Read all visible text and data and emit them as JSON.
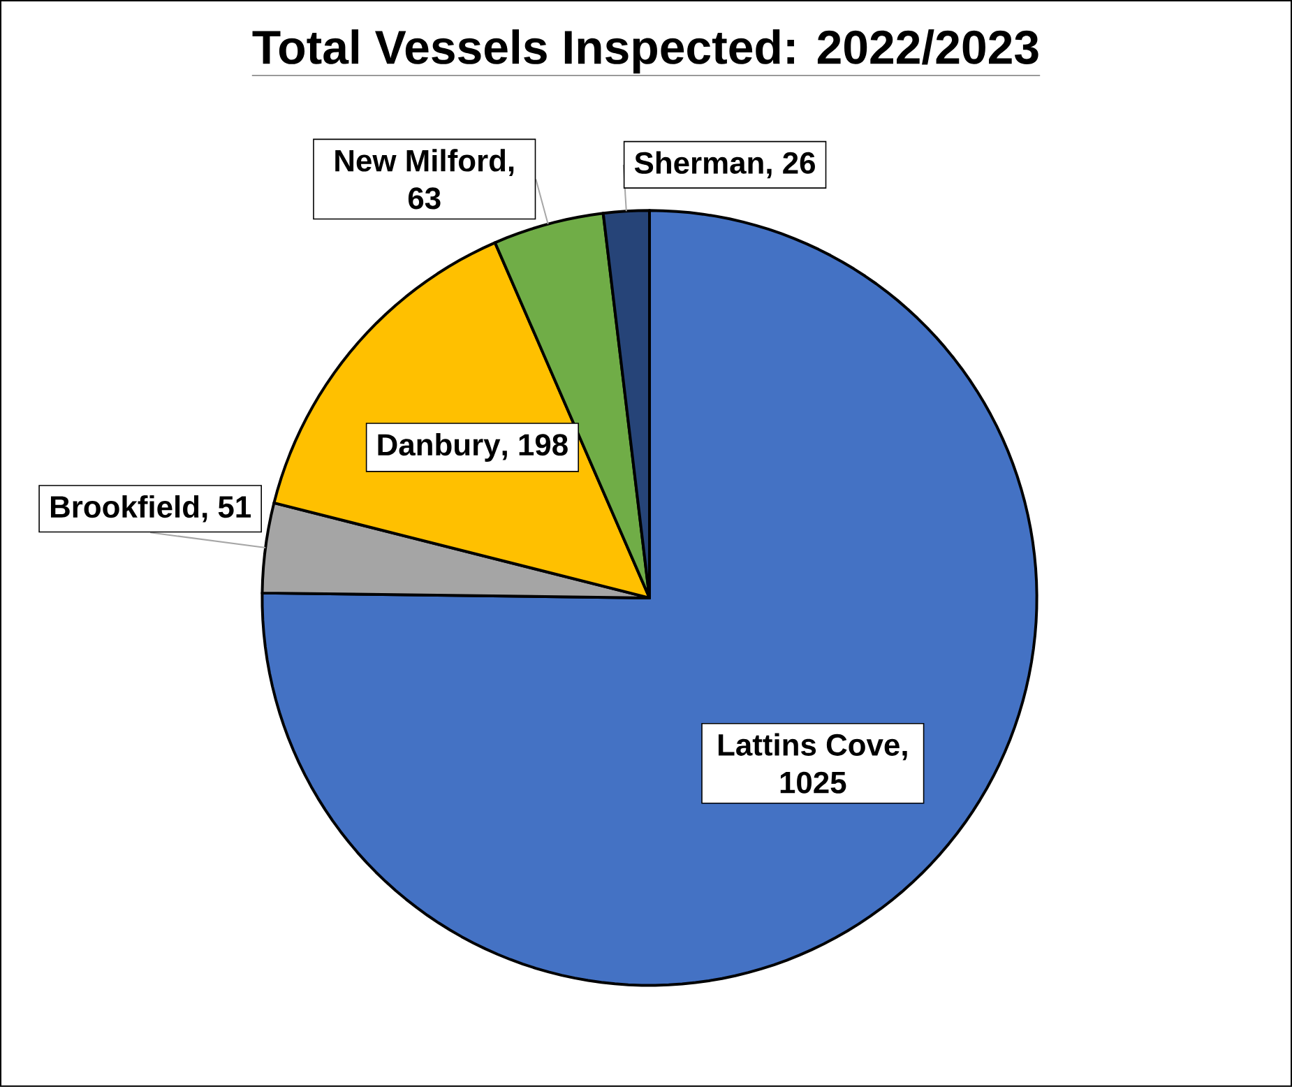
{
  "chart_data": {
    "type": "pie",
    "title": "Total Vessels Inspected: 2022/2023",
    "categories": [
      "Lattins Cove",
      "Brookfield",
      "Danbury",
      "New Milford",
      "Sherman"
    ],
    "values": [
      1025,
      51,
      198,
      63,
      26
    ],
    "colors": [
      "#4472c4",
      "#a5a5a5",
      "#ffc000",
      "#70ad47",
      "#264478"
    ],
    "value_labels": [
      ", 1025",
      ", 51",
      ", 198",
      ", 63",
      ", 26"
    ]
  }
}
